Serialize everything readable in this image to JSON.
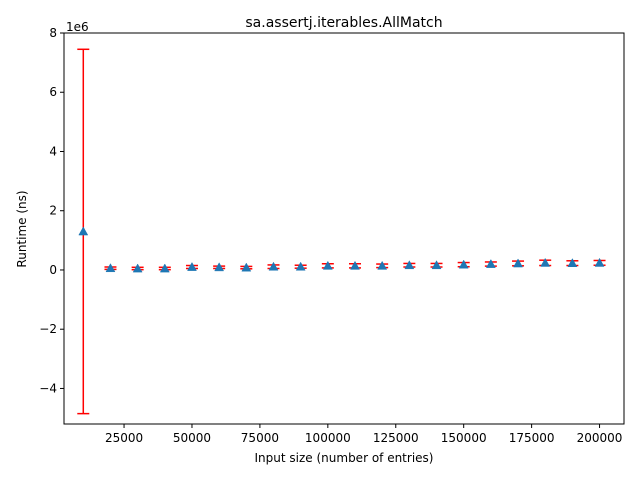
{
  "chart_data": {
    "type": "scatter",
    "title": "sa.assertj.iterables.AllMatch",
    "xlabel": "Input size (number of entries)",
    "ylabel": "Runtime (ns)",
    "y_offset_label": "1e6",
    "xlim": [
      2900,
      209000
    ],
    "ylim": [
      -5.2,
      8.0
    ],
    "x_ticks": [
      25000,
      50000,
      75000,
      100000,
      125000,
      150000,
      175000,
      200000
    ],
    "x_tick_labels": [
      "25000",
      "50000",
      "75000",
      "100000",
      "125000",
      "150000",
      "175000",
      "200000"
    ],
    "y_ticks": [
      -4,
      -2,
      0,
      2,
      4,
      6,
      8
    ],
    "y_tick_labels": [
      "−4",
      "−2",
      "0",
      "2",
      "4",
      "6",
      "8"
    ],
    "grid": false,
    "series": [
      {
        "marker": "triangle",
        "marker_color": "#1f77b4",
        "error_color": "#ff0000",
        "x": [
          10000,
          20000,
          30000,
          40000,
          50000,
          60000,
          70000,
          80000,
          90000,
          100000,
          110000,
          120000,
          130000,
          140000,
          150000,
          160000,
          170000,
          180000,
          190000,
          200000
        ],
        "y": [
          1.3,
          0.06,
          0.05,
          0.05,
          0.1,
          0.09,
          0.08,
          0.11,
          0.11,
          0.14,
          0.14,
          0.14,
          0.16,
          0.16,
          0.18,
          0.2,
          0.22,
          0.24,
          0.23,
          0.24
        ],
        "err_low": [
          -4.85,
          0.02,
          0.01,
          0.01,
          0.05,
          0.05,
          0.04,
          0.05,
          0.06,
          0.07,
          0.07,
          0.08,
          0.1,
          0.1,
          0.11,
          0.13,
          0.14,
          0.15,
          0.15,
          0.16
        ],
        "err_high": [
          7.45,
          0.1,
          0.09,
          0.09,
          0.15,
          0.13,
          0.12,
          0.17,
          0.16,
          0.21,
          0.21,
          0.2,
          0.22,
          0.22,
          0.25,
          0.27,
          0.3,
          0.33,
          0.31,
          0.32
        ]
      }
    ]
  }
}
